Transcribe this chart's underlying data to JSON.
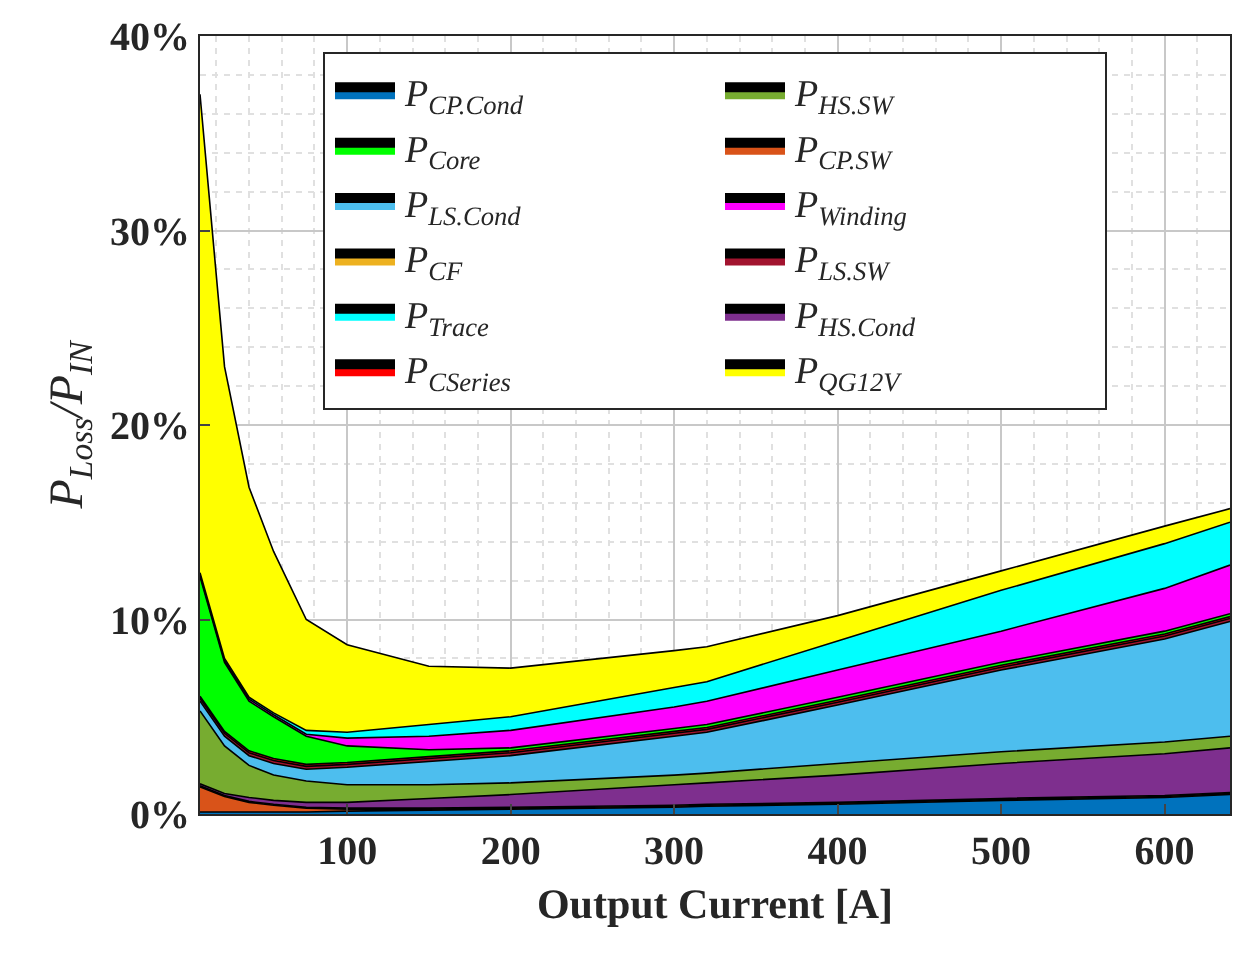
{
  "chart_data": {
    "type": "area",
    "stacked": true,
    "xlabel": "Output Current [A]",
    "ylabel": "P$_{Loss}$/P$_{IN}$",
    "x": [
      10,
      25,
      40,
      55,
      75,
      100,
      150,
      200,
      300,
      320,
      400,
      500,
      600,
      640
    ],
    "xlim": [
      10,
      640
    ],
    "xticks": [
      100,
      200,
      300,
      400,
      500,
      600
    ],
    "ylim": [
      0,
      40
    ],
    "yticks": [
      {
        "value": 0,
        "label": "0%"
      },
      {
        "value": 10,
        "label": "10%"
      },
      {
        "value": 20,
        "label": "20%"
      },
      {
        "value": 30,
        "label": "30%"
      },
      {
        "value": 40,
        "label": "40%"
      }
    ],
    "grid": true,
    "legend": "top",
    "series": [
      {
        "name": "P$_{CP.Cond}$",
        "color": "#0072bd",
        "values": [
          0.1,
          0.1,
          0.1,
          0.1,
          0.1,
          0.15,
          0.2,
          0.25,
          0.35,
          0.4,
          0.5,
          0.7,
          0.85,
          1.0
        ]
      },
      {
        "name": "P$_{CP.SW}$",
        "color": "#d95319",
        "values": [
          1.3,
          0.8,
          0.5,
          0.35,
          0.2,
          0.1,
          0.05,
          0.05,
          0.05,
          0.05,
          0.05,
          0.05,
          0.05,
          0.05
        ]
      },
      {
        "name": "P$_{CF}$",
        "color": "#edb120",
        "values": [
          0.05,
          0.05,
          0.05,
          0.05,
          0.05,
          0.05,
          0.05,
          0.05,
          0.05,
          0.05,
          0.05,
          0.05,
          0.05,
          0.05
        ]
      },
      {
        "name": "P$_{HS.Cond}$",
        "color": "#7e2f8e",
        "values": [
          0.1,
          0.1,
          0.2,
          0.2,
          0.25,
          0.3,
          0.5,
          0.65,
          1.05,
          1.1,
          1.4,
          1.8,
          2.15,
          2.3
        ]
      },
      {
        "name": "P$_{HS.SW}$",
        "color": "#77ac30",
        "values": [
          3.75,
          2.45,
          1.65,
          1.3,
          1.1,
          0.9,
          0.7,
          0.6,
          0.5,
          0.5,
          0.6,
          0.6,
          0.6,
          0.6
        ]
      },
      {
        "name": "P$_{LS.Cond}$",
        "color": "#4dbeee",
        "values": [
          0.5,
          0.5,
          0.5,
          0.6,
          0.6,
          0.9,
          1.2,
          1.4,
          2.0,
          2.1,
          3.0,
          4.2,
          5.3,
          5.9
        ]
      },
      {
        "name": "P$_{LS.SW}$",
        "color": "#a2142f",
        "values": [
          0.15,
          0.15,
          0.15,
          0.15,
          0.15,
          0.15,
          0.15,
          0.15,
          0.15,
          0.15,
          0.15,
          0.15,
          0.15,
          0.15
        ]
      },
      {
        "name": "P$_{CSeries}$",
        "color": "#ff0000",
        "values": [
          0.1,
          0.1,
          0.1,
          0.1,
          0.1,
          0.1,
          0.1,
          0.1,
          0.1,
          0.1,
          0.1,
          0.1,
          0.1,
          0.1
        ]
      },
      {
        "name": "P$_{Core}$",
        "color": "#00ff00",
        "values": [
          6.15,
          3.55,
          2.55,
          2.15,
          1.45,
          0.85,
          0.35,
          0.15,
          0.15,
          0.15,
          0.15,
          0.15,
          0.15,
          0.15
        ]
      },
      {
        "name": "P$_{Winding}$",
        "color": "#ff00ff",
        "values": [
          0.1,
          0.1,
          0.1,
          0.1,
          0.1,
          0.4,
          0.7,
          0.9,
          1.1,
          1.2,
          1.4,
          1.6,
          2.2,
          2.5
        ]
      },
      {
        "name": "P$_{Trace}$",
        "color": "#00ffff",
        "values": [
          0.1,
          0.1,
          0.1,
          0.1,
          0.2,
          0.3,
          0.6,
          0.7,
          1.0,
          1.0,
          1.5,
          2.1,
          2.3,
          2.2
        ]
      },
      {
        "name": "P$_{QG12V}$",
        "color": "#ffff00",
        "values": [
          24.6,
          15.0,
          10.8,
          8.3,
          5.7,
          4.5,
          3.0,
          2.5,
          1.9,
          1.8,
          1.3,
          1.0,
          0.9,
          0.7
        ]
      }
    ]
  }
}
